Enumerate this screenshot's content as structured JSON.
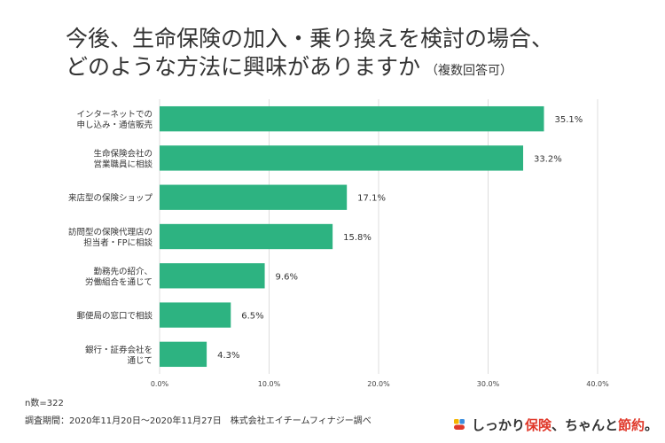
{
  "title": {
    "line1": "今後、生命保険の加入・乗り換えを検討の場合、",
    "line2": "どのような方法に興味がありますか",
    "note": "（複数回答可）"
  },
  "chart_data": {
    "type": "bar",
    "orientation": "horizontal",
    "categories": [
      [
        "インターネットでの",
        "申し込み・通信販売"
      ],
      [
        "生命保険会社の",
        "営業職員に相談"
      ],
      [
        "来店型の保険ショップ"
      ],
      [
        "訪問型の保険代理店の",
        "担当者・FPに相談"
      ],
      [
        "勤務先の紹介、",
        "労働組合を通じて"
      ],
      [
        "郵便局の窓口で相談"
      ],
      [
        "銀行・証券会社を",
        "通じて"
      ]
    ],
    "values": [
      35.1,
      33.2,
      17.1,
      15.8,
      9.6,
      6.5,
      4.3
    ],
    "value_labels": [
      "35.1%",
      "33.2%",
      "17.1%",
      "15.8%",
      "9.6%",
      "6.5%",
      "4.3%"
    ],
    "xlim": [
      0,
      40
    ],
    "xticks": [
      "0.0%",
      "10.0%",
      "20.0%",
      "30.0%",
      "40.0%"
    ],
    "bar_color": "#2db381",
    "grid": true,
    "legend": "none"
  },
  "footer": {
    "n": "n数=322",
    "period": "調査期間：2020年11月20日～2020年11月27日　株式会社エイチームフィナジー調べ"
  },
  "brand": {
    "text_before": "しっかり",
    "text_highlight1": "保険",
    "text_middle": "、ちゃんと",
    "text_highlight2": "節約",
    "text_after": "。",
    "logo_icon": "brand-logo-icon",
    "colors": [
      "#f4b400",
      "#e0392b",
      "#3b8ede"
    ]
  }
}
